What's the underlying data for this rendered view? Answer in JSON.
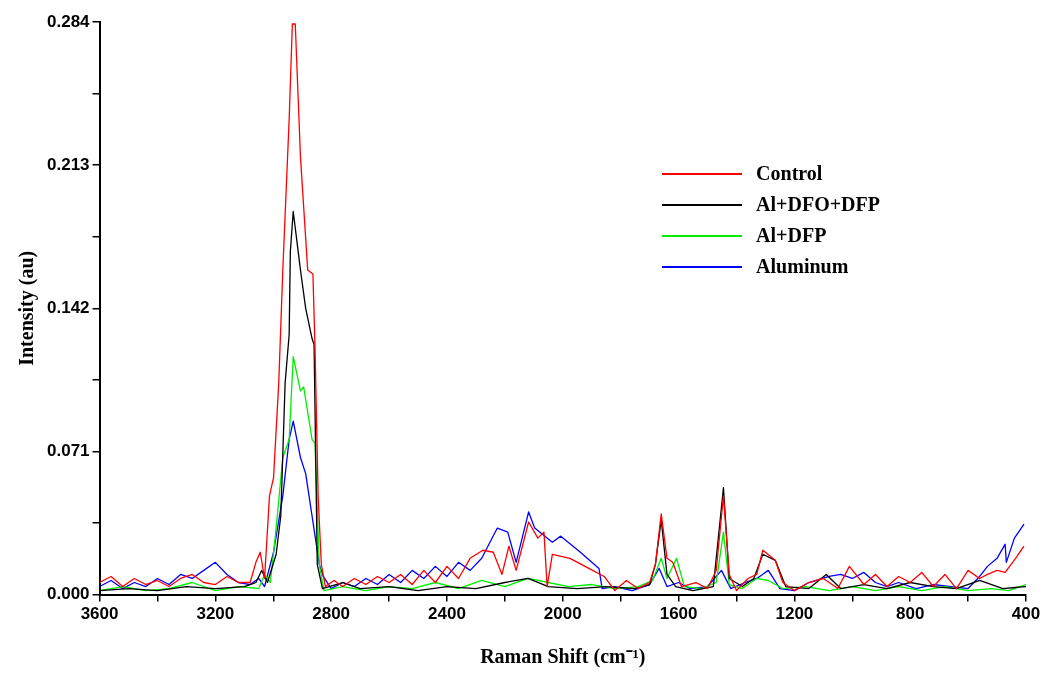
{
  "chart_data": {
    "type": "line",
    "xlabel": "Raman Shift (cm⁻¹)",
    "ylabel": "Intensity (au)",
    "xlim": [
      3600,
      400
    ],
    "ylim": [
      0,
      0.284
    ],
    "xticks": [
      3600,
      {
        "value": 3400,
        "label": null
      },
      3200,
      {
        "value": 3000,
        "label": null
      },
      2800,
      {
        "value": 2600,
        "label": null
      },
      2400,
      {
        "value": 2200,
        "label": null
      },
      2000,
      {
        "value": 1800,
        "label": null
      },
      1600,
      {
        "value": 1400,
        "label": null
      },
      1200,
      {
        "value": 1000,
        "label": null
      },
      800,
      {
        "value": 600,
        "label": null
      },
      400
    ],
    "yticks": [
      {
        "value": 0,
        "label": "0.000"
      },
      {
        "value": 0.0355,
        "label": null
      },
      0.071,
      {
        "value": 0.1065,
        "label": null
      },
      0.142,
      {
        "value": 0.1775,
        "label": null
      },
      0.213,
      {
        "value": 0.2485,
        "label": null
      },
      0.284
    ],
    "grid": false,
    "legend": "top right",
    "marker": "none",
    "line_style": "solid",
    "series": [
      {
        "name": "Control",
        "color": "#ff0000",
        "x": [
          3600,
          3560,
          3520,
          3480,
          3440,
          3400,
          3360,
          3320,
          3280,
          3240,
          3200,
          3160,
          3120,
          3080,
          3060,
          3045,
          3030,
          3013,
          2999,
          2981,
          2967,
          2945,
          2934,
          2924,
          2906,
          2881,
          2863,
          2856,
          2845,
          2834,
          2820,
          2790,
          2760,
          2720,
          2680,
          2640,
          2600,
          2560,
          2520,
          2480,
          2440,
          2400,
          2360,
          2320,
          2276,
          2240,
          2210,
          2186,
          2161,
          2118,
          2086,
          2065,
          2054,
          2036,
          1975,
          1910,
          1857,
          1820,
          1780,
          1740,
          1700,
          1680,
          1660,
          1640,
          1620,
          1590,
          1540,
          1500,
          1470,
          1445,
          1425,
          1400,
          1360,
          1330,
          1309,
          1266,
          1240,
          1200,
          1150,
          1100,
          1050,
          1010,
          960,
          920,
          880,
          840,
          800,
          760,
          720,
          680,
          640,
          600,
          560,
          533,
          500,
          472,
          436,
          407
        ],
        "values": [
          0.006,
          0.009,
          0.004,
          0.008,
          0.005,
          0.007,
          0.004,
          0.008,
          0.01,
          0.006,
          0.005,
          0.009,
          0.006,
          0.006,
          0.016,
          0.021,
          0.008,
          0.049,
          0.058,
          0.105,
          0.161,
          0.236,
          0.283,
          0.283,
          0.217,
          0.161,
          0.159,
          0.124,
          0.049,
          0.015,
          0.004,
          0.007,
          0.004,
          0.008,
          0.005,
          0.009,
          0.006,
          0.01,
          0.005,
          0.012,
          0.006,
          0.014,
          0.008,
          0.018,
          0.022,
          0.021,
          0.01,
          0.024,
          0.012,
          0.036,
          0.028,
          0.031,
          0.004,
          0.02,
          0.018,
          0.013,
          0.009,
          0.002,
          0.007,
          0.003,
          0.006,
          0.015,
          0.04,
          0.018,
          0.016,
          0.004,
          0.006,
          0.003,
          0.012,
          0.049,
          0.01,
          0.002,
          0.008,
          0.01,
          0.022,
          0.017,
          0.006,
          0.002,
          0.006,
          0.008,
          0.003,
          0.014,
          0.005,
          0.01,
          0.004,
          0.009,
          0.006,
          0.011,
          0.004,
          0.01,
          0.003,
          0.012,
          0.008,
          0.01,
          0.012,
          0.011,
          0.018,
          0.024
        ]
      },
      {
        "name": "Al+DFO+DFP",
        "color": "#000000",
        "x": [
          3600,
          3500,
          3400,
          3300,
          3200,
          3100,
          3060,
          3040,
          3020,
          2990,
          2974,
          2959,
          2945,
          2941,
          2931,
          2906,
          2888,
          2866,
          2859,
          2848,
          2830,
          2760,
          2700,
          2600,
          2500,
          2400,
          2300,
          2200,
          2120,
          2050,
          1950,
          1850,
          1750,
          1700,
          1680,
          1660,
          1640,
          1610,
          1550,
          1480,
          1445,
          1425,
          1380,
          1340,
          1309,
          1266,
          1230,
          1150,
          1090,
          1040,
          960,
          880,
          800,
          720,
          640,
          560,
          480,
          400
        ],
        "values": [
          0.002,
          0.003,
          0.002,
          0.004,
          0.003,
          0.004,
          0.006,
          0.012,
          0.006,
          0.02,
          0.039,
          0.105,
          0.129,
          0.17,
          0.19,
          0.161,
          0.142,
          0.127,
          0.124,
          0.015,
          0.003,
          0.006,
          0.003,
          0.004,
          0.002,
          0.004,
          0.003,
          0.006,
          0.008,
          0.004,
          0.003,
          0.004,
          0.003,
          0.005,
          0.015,
          0.037,
          0.01,
          0.004,
          0.002,
          0.004,
          0.053,
          0.008,
          0.004,
          0.008,
          0.02,
          0.017,
          0.004,
          0.003,
          0.01,
          0.003,
          0.005,
          0.003,
          0.006,
          0.004,
          0.003,
          0.007,
          0.003,
          0.004
        ]
      },
      {
        "name": "Al+DFP",
        "color": "#00ee00",
        "x": [
          3600,
          3520,
          3440,
          3360,
          3280,
          3200,
          3120,
          3050,
          3030,
          3010,
          2992,
          2967,
          2945,
          2931,
          2906,
          2895,
          2866,
          2856,
          2841,
          2825,
          2760,
          2680,
          2600,
          2520,
          2440,
          2360,
          2280,
          2200,
          2120,
          2050,
          1980,
          1900,
          1820,
          1740,
          1690,
          1660,
          1640,
          1607,
          1580,
          1520,
          1470,
          1445,
          1425,
          1380,
          1330,
          1290,
          1240,
          1160,
          1080,
          1000,
          920,
          840,
          760,
          680,
          600,
          520,
          460,
          400
        ],
        "values": [
          0.002,
          0.004,
          0.002,
          0.003,
          0.006,
          0.002,
          0.004,
          0.003,
          0.01,
          0.006,
          0.03,
          0.068,
          0.077,
          0.118,
          0.101,
          0.103,
          0.077,
          0.075,
          0.015,
          0.002,
          0.004,
          0.002,
          0.004,
          0.003,
          0.006,
          0.003,
          0.007,
          0.004,
          0.008,
          0.006,
          0.004,
          0.005,
          0.003,
          0.004,
          0.007,
          0.018,
          0.008,
          0.018,
          0.004,
          0.003,
          0.006,
          0.031,
          0.005,
          0.003,
          0.008,
          0.007,
          0.003,
          0.004,
          0.002,
          0.004,
          0.002,
          0.004,
          0.002,
          0.004,
          0.002,
          0.003,
          0.002,
          0.005
        ]
      },
      {
        "name": "Aluminum",
        "color": "#0000ff",
        "x": [
          3600,
          3560,
          3520,
          3480,
          3440,
          3400,
          3360,
          3320,
          3280,
          3240,
          3200,
          3160,
          3120,
          3080,
          3050,
          3030,
          2999,
          2967,
          2945,
          2931,
          2906,
          2888,
          2866,
          2841,
          2827,
          2800,
          2760,
          2720,
          2680,
          2640,
          2600,
          2560,
          2520,
          2480,
          2440,
          2400,
          2360,
          2320,
          2280,
          2226,
          2190,
          2161,
          2118,
          2097,
          2036,
          2007,
          1939,
          1875,
          1864,
          1820,
          1760,
          1700,
          1667,
          1640,
          1600,
          1560,
          1500,
          1452,
          1420,
          1370,
          1330,
          1290,
          1250,
          1200,
          1150,
          1080,
          1040,
          1000,
          960,
          920,
          880,
          840,
          780,
          720,
          660,
          600,
          560,
          533,
          500,
          472,
          468,
          440,
          407
        ],
        "values": [
          0.004,
          0.007,
          0.003,
          0.006,
          0.004,
          0.008,
          0.005,
          0.01,
          0.008,
          0.012,
          0.016,
          0.01,
          0.006,
          0.005,
          0.008,
          0.004,
          0.021,
          0.049,
          0.077,
          0.086,
          0.068,
          0.06,
          0.039,
          0.015,
          0.009,
          0.003,
          0.006,
          0.004,
          0.008,
          0.005,
          0.01,
          0.006,
          0.012,
          0.008,
          0.014,
          0.009,
          0.016,
          0.012,
          0.018,
          0.033,
          0.031,
          0.016,
          0.041,
          0.033,
          0.026,
          0.029,
          0.021,
          0.013,
          0.003,
          0.004,
          0.002,
          0.005,
          0.013,
          0.004,
          0.006,
          0.003,
          0.004,
          0.012,
          0.003,
          0.006,
          0.008,
          0.012,
          0.003,
          0.002,
          0.006,
          0.009,
          0.01,
          0.008,
          0.011,
          0.006,
          0.004,
          0.006,
          0.003,
          0.005,
          0.004,
          0.003,
          0.009,
          0.014,
          0.018,
          0.025,
          0.016,
          0.028,
          0.035
        ]
      }
    ]
  }
}
